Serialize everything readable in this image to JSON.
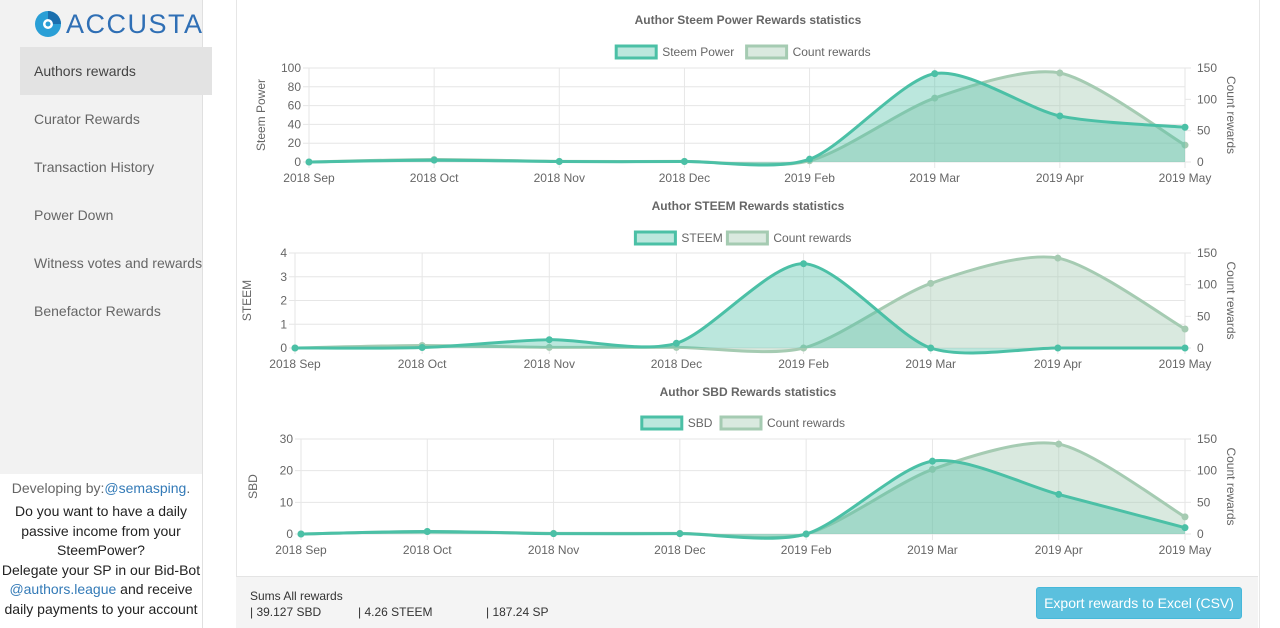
{
  "app": {
    "name": "ACCUSTA"
  },
  "sidebar": {
    "items": [
      {
        "label": "Authors rewards",
        "active": true
      },
      {
        "label": "Curator Rewards"
      },
      {
        "label": "Transaction History"
      },
      {
        "label": "Power Down"
      },
      {
        "label": "Witness votes and rewards"
      },
      {
        "label": "Benefactor Rewards"
      }
    ],
    "developer": {
      "prefix": "Developing by:",
      "name": "@semasping",
      "suffix": "."
    },
    "promo": {
      "line1": "Do you want to have a daily passive income from your SteemPower?",
      "line2_prefix": "Delegate your SP in our Bid-Bot",
      "bot": "@authors.league",
      "line2_suffix": "and receive daily payments to your account"
    }
  },
  "footer": {
    "sums_title": "Sums All rewards",
    "sbd": "| 39.127 SBD",
    "steem": "| 4.26 STEEM",
    "sp": "| 187.24 SP",
    "export_label": "Export rewards to Excel (CSV)"
  },
  "colors": {
    "primary_line": "#4bc0a6",
    "primary_fill": "rgba(75,192,166,0.38)",
    "count_line": "#a5cbb2",
    "count_fill": "rgba(165,203,178,0.42)",
    "grid": "#e6e6e6",
    "text": "#666666"
  },
  "chart_data": [
    {
      "type": "area",
      "title": "Author Steem Power Rewards statistics",
      "categories": [
        "2018 Sep",
        "2018 Oct",
        "2018 Nov",
        "2018 Dec",
        "2019 Feb",
        "2019 Mar",
        "2019 Apr",
        "2019 May"
      ],
      "ylabel": "Steem Power",
      "y2label": "Count rewards",
      "ylim": [
        0,
        100
      ],
      "yticks": [
        0,
        20,
        40,
        60,
        80,
        100
      ],
      "y2lim": [
        0,
        150
      ],
      "y2ticks": [
        0,
        50,
        100,
        150
      ],
      "legend_position": "top",
      "grid": true,
      "series": [
        {
          "name": "Steem Power",
          "axis": "left",
          "values": [
            0,
            2,
            0.5,
            0.5,
            3,
            94,
            49,
            37
          ]
        },
        {
          "name": "Count rewards",
          "axis": "right",
          "values": [
            0,
            4,
            1,
            1,
            2,
            102,
            142,
            27
          ]
        }
      ]
    },
    {
      "type": "area",
      "title": "Author STEEM Rewards statistics",
      "categories": [
        "2018 Sep",
        "2018 Oct",
        "2018 Nov",
        "2018 Dec",
        "2019 Feb",
        "2019 Mar",
        "2019 Apr",
        "2019 May"
      ],
      "ylabel": "STEEM",
      "y2label": "Count rewards",
      "ylim": [
        0,
        4
      ],
      "yticks": [
        0,
        1,
        2,
        3,
        4
      ],
      "y2lim": [
        0,
        150
      ],
      "y2ticks": [
        0,
        50,
        100,
        150
      ],
      "legend_position": "top",
      "grid": true,
      "series": [
        {
          "name": "STEEM",
          "axis": "left",
          "values": [
            0,
            0.02,
            0.35,
            0.2,
            3.55,
            0,
            0,
            0
          ]
        },
        {
          "name": "Count rewards",
          "axis": "right",
          "values": [
            0,
            4,
            1,
            1,
            0,
            102,
            142,
            30
          ]
        }
      ]
    },
    {
      "type": "area",
      "title": "Author SBD Rewards statistics",
      "categories": [
        "2018 Sep",
        "2018 Oct",
        "2018 Nov",
        "2018 Dec",
        "2019 Feb",
        "2019 Mar",
        "2019 Apr",
        "2019 May"
      ],
      "ylabel": "SBD",
      "y2label": "Count rewards",
      "ylim": [
        0,
        30
      ],
      "yticks": [
        0,
        10,
        20,
        30
      ],
      "y2lim": [
        0,
        150
      ],
      "y2ticks": [
        0,
        50,
        100,
        150
      ],
      "legend_position": "top",
      "grid": true,
      "series": [
        {
          "name": "SBD",
          "axis": "left",
          "values": [
            0,
            0.8,
            0.1,
            0.1,
            0,
            23,
            12.5,
            2
          ]
        },
        {
          "name": "Count rewards",
          "axis": "right",
          "values": [
            0,
            4,
            1,
            1,
            0,
            102,
            142,
            27
          ]
        }
      ]
    }
  ]
}
